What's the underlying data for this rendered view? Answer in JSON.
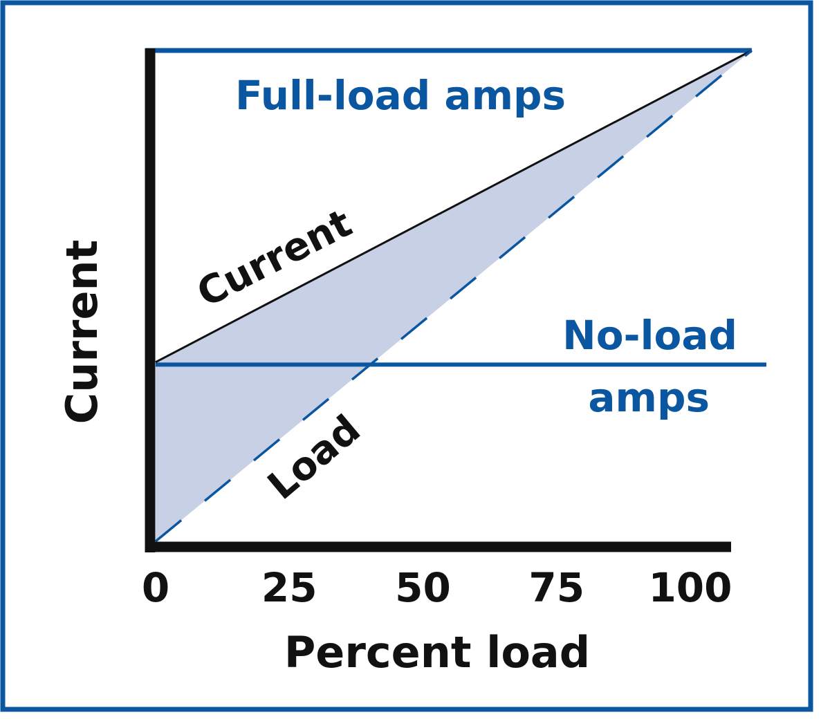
{
  "chart_data": {
    "type": "line",
    "title": "",
    "xlabel": "Percent load",
    "ylabel": "Current",
    "x_ticks": [
      "0",
      "25",
      "50",
      "75",
      "100"
    ],
    "x_tick_values": [
      0,
      25,
      50,
      75,
      100
    ],
    "xlim": [
      0,
      111.5
    ],
    "ylim": [
      0,
      1
    ],
    "grid": false,
    "series": [
      {
        "name": "Current",
        "style": "solid",
        "color": "#111111",
        "x": [
          0,
          111.5
        ],
        "y": [
          0.365,
          1
        ]
      },
      {
        "name": "Load",
        "style": "dashed",
        "color": "#0a56a0",
        "x": [
          0,
          111.5
        ],
        "y": [
          0,
          1
        ]
      }
    ],
    "reference_lines": [
      {
        "label": "Full-load amps",
        "y": 1,
        "color": "#0a56a0"
      },
      {
        "label_line1": "No-load",
        "label_line2": "amps",
        "y": 0.36,
        "color": "#0a56a0"
      }
    ],
    "shaded_region": {
      "between": [
        "Current",
        "Load"
      ],
      "color": "#c8d0e6"
    },
    "colors": {
      "frame": "#0a56a0",
      "axis": "#111111",
      "accent": "#0a56a0",
      "fill": "#c8d0e6"
    }
  }
}
